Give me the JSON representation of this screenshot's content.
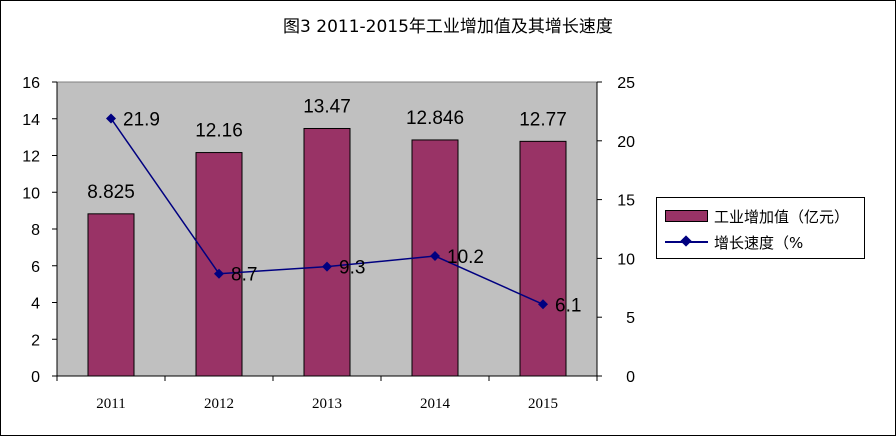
{
  "title": "图3  2011-2015年工业增加值及其增长速度",
  "chart_data": {
    "type": "bar",
    "categories": [
      "2011",
      "2012",
      "2013",
      "2014",
      "2015"
    ],
    "series": [
      {
        "name": "工业增加值（亿元）",
        "type": "bar",
        "axis": "left",
        "values": [
          8.825,
          12.16,
          13.47,
          12.846,
          12.77
        ],
        "labels": [
          "8.825",
          "12.16",
          "13.47",
          "12.846",
          "12.77"
        ],
        "color": "#993366"
      },
      {
        "name": "增长速度（%",
        "type": "line",
        "axis": "right",
        "values": [
          21.9,
          8.7,
          9.3,
          10.2,
          6.1
        ],
        "labels": [
          "21.9",
          "8.7",
          "9.3",
          "10.2",
          "6.1"
        ],
        "color": "#000080"
      }
    ],
    "y_left": {
      "min": 0,
      "max": 16,
      "ticks": [
        "0",
        "2",
        "4",
        "6",
        "8",
        "10",
        "12",
        "14",
        "16"
      ]
    },
    "y_right": {
      "min": 0,
      "max": 25,
      "ticks": [
        "0",
        "5",
        "10",
        "15",
        "20",
        "25"
      ]
    },
    "plot_background": "#c0c0c0",
    "grid": false,
    "legend": "right"
  }
}
